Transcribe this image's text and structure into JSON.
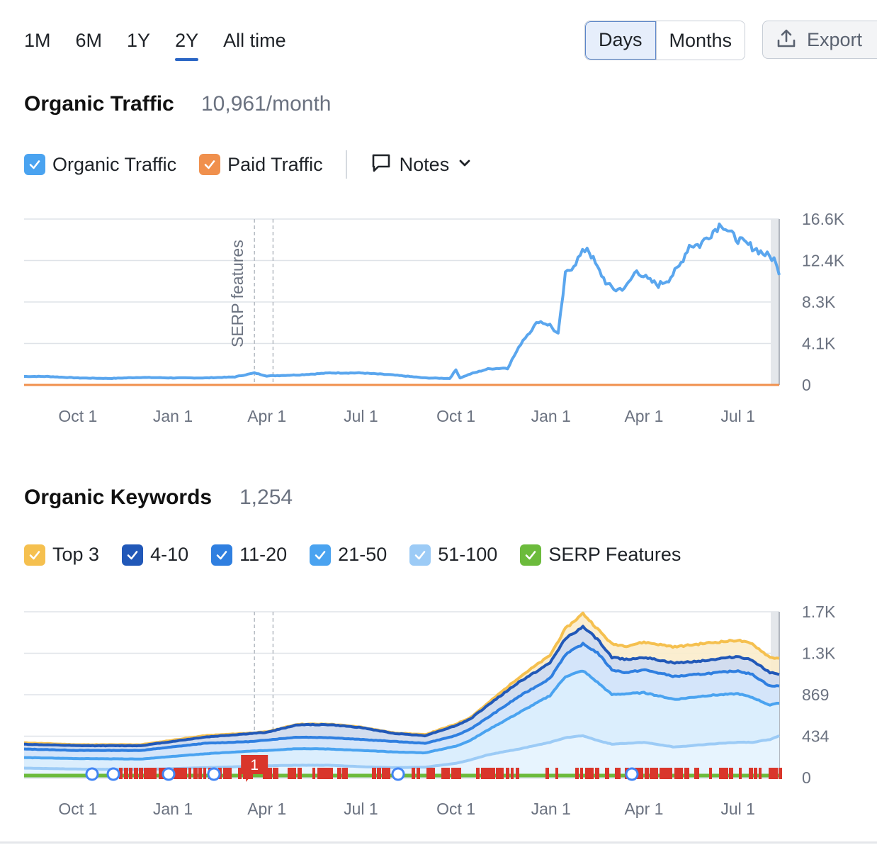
{
  "toolbar": {
    "ranges": [
      "1M",
      "6M",
      "1Y",
      "2Y",
      "All time"
    ],
    "active_range": "2Y",
    "units": [
      "Days",
      "Months"
    ],
    "active_unit": "Days",
    "export_label": "Export"
  },
  "traffic": {
    "title": "Organic Traffic",
    "value": "10,961/month",
    "legend": [
      {
        "label": "Organic Traffic",
        "color": "#4aa3f0",
        "checked": true
      },
      {
        "label": "Paid Traffic",
        "color": "#f0904d",
        "checked": true
      }
    ],
    "notes_label": "Notes"
  },
  "keywords": {
    "title": "Organic Keywords",
    "value": "1,254",
    "legend": [
      {
        "label": "Top 3",
        "color": "#f5c04f",
        "checked": true
      },
      {
        "label": "4-10",
        "color": "#2158b8",
        "checked": true
      },
      {
        "label": "11-20",
        "color": "#2f7fe0",
        "checked": true
      },
      {
        "label": "21-50",
        "color": "#4aa3f0",
        "checked": true
      },
      {
        "label": "51-100",
        "color": "#9ccbf6",
        "checked": true
      },
      {
        "label": "SERP Features",
        "color": "#6cbb3c",
        "checked": true
      }
    ]
  },
  "chart_data": [
    {
      "type": "line",
      "title": "Organic Traffic",
      "x_tick_labels": [
        "Oct 1",
        "Jan 1",
        "Apr 1",
        "Jul 1",
        "Oct 1",
        "Jan 1",
        "Apr 1",
        "Jul 1"
      ],
      "y_tick_labels": [
        "16.6K",
        "12.4K",
        "8.3K",
        "4.1K",
        "0"
      ],
      "ylim": [
        0,
        16600
      ],
      "annotation": "SERP features",
      "series": [
        {
          "name": "Organic Traffic",
          "color": "#5aa6ee",
          "x": [
            "2023-08-10",
            "2023-09-01",
            "2023-10-01",
            "2023-11-01",
            "2023-12-01",
            "2024-01-01",
            "2024-02-01",
            "2024-03-01",
            "2024-03-20",
            "2024-04-01",
            "2024-05-01",
            "2024-06-01",
            "2024-07-01",
            "2024-08-01",
            "2024-09-01",
            "2024-09-25",
            "2024-10-01",
            "2024-10-05",
            "2024-10-15",
            "2024-11-01",
            "2024-11-20",
            "2024-12-05",
            "2024-12-20",
            "2024-12-31",
            "2025-01-08",
            "2025-01-15",
            "2025-01-25",
            "2025-02-05",
            "2025-02-15",
            "2025-02-25",
            "2025-03-05",
            "2025-03-15",
            "2025-03-25",
            "2025-04-05",
            "2025-04-15",
            "2025-04-25",
            "2025-05-05",
            "2025-05-15",
            "2025-05-25",
            "2025-06-05",
            "2025-06-15",
            "2025-06-25",
            "2025-07-05",
            "2025-07-15",
            "2025-07-25",
            "2025-08-05",
            "2025-08-10"
          ],
          "y": [
            850,
            850,
            700,
            650,
            750,
            700,
            700,
            800,
            1200,
            900,
            1000,
            1200,
            1200,
            1000,
            700,
            650,
            1500,
            700,
            1100,
            1600,
            1700,
            4500,
            6400,
            6000,
            5000,
            11000,
            12300,
            13800,
            11700,
            10000,
            9500,
            9800,
            11500,
            10500,
            10000,
            10600,
            11800,
            14000,
            14000,
            15200,
            16200,
            15000,
            14300,
            13800,
            13200,
            12600,
            11000
          ]
        },
        {
          "name": "Paid Traffic",
          "color": "#f0904d",
          "x": [
            "2023-08-10",
            "2025-08-10"
          ],
          "y": [
            0,
            0
          ]
        }
      ]
    },
    {
      "type": "area",
      "title": "Organic Keywords",
      "x_tick_labels": [
        "Oct 1",
        "Jan 1",
        "Apr 1",
        "Jul 1",
        "Oct 1",
        "Jan 1",
        "Apr 1",
        "Jul 1"
      ],
      "y_tick_labels": [
        "1.7K",
        "1.3K",
        "869",
        "434",
        "0"
      ],
      "ylim": [
        0,
        1738
      ],
      "x": [
        "2023-08-10",
        "2023-10-01",
        "2023-12-01",
        "2024-02-01",
        "2024-03-20",
        "2024-04-01",
        "2024-05-01",
        "2024-06-01",
        "2024-07-01",
        "2024-08-01",
        "2024-09-01",
        "2024-10-01",
        "2024-10-15",
        "2024-11-01",
        "2024-12-01",
        "2024-12-31",
        "2025-01-15",
        "2025-02-01",
        "2025-02-15",
        "2025-03-01",
        "2025-03-15",
        "2025-04-01",
        "2025-05-01",
        "2025-06-01",
        "2025-07-01",
        "2025-07-15",
        "2025-08-01",
        "2025-08-10"
      ],
      "series": [
        {
          "name": "Top 3",
          "color": "#f5c04f",
          "values": [
            365,
            345,
            345,
            440,
            470,
            480,
            560,
            560,
            530,
            470,
            450,
            560,
            630,
            780,
            1050,
            1280,
            1560,
            1720,
            1560,
            1400,
            1380,
            1420,
            1370,
            1410,
            1440,
            1400,
            1260,
            1250
          ]
        },
        {
          "name": "4-10",
          "color": "#2158b8",
          "values": [
            350,
            335,
            335,
            425,
            465,
            475,
            555,
            555,
            525,
            465,
            440,
            545,
            615,
            760,
            1000,
            1200,
            1460,
            1580,
            1450,
            1260,
            1240,
            1260,
            1200,
            1230,
            1270,
            1230,
            1100,
            1080
          ]
        },
        {
          "name": "11-20",
          "color": "#2f7fe0",
          "values": [
            300,
            285,
            285,
            360,
            380,
            395,
            425,
            420,
            400,
            380,
            360,
            440,
            510,
            630,
            850,
            1040,
            1290,
            1400,
            1310,
            1130,
            1100,
            1130,
            1060,
            1090,
            1120,
            1080,
            960,
            960
          ]
        },
        {
          "name": "21-50",
          "color": "#4aa3f0",
          "values": [
            210,
            200,
            195,
            250,
            280,
            285,
            305,
            300,
            285,
            270,
            260,
            330,
            390,
            500,
            680,
            860,
            1060,
            1120,
            1000,
            870,
            880,
            890,
            820,
            860,
            880,
            840,
            760,
            780
          ]
        },
        {
          "name": "51-100",
          "color": "#9ccbf6",
          "values": [
            100,
            90,
            85,
            105,
            120,
            125,
            130,
            130,
            115,
            105,
            110,
            150,
            185,
            240,
            300,
            370,
            420,
            440,
            390,
            350,
            360,
            370,
            320,
            350,
            370,
            370,
            400,
            440
          ]
        }
      ],
      "serp_features_marker": "1"
    }
  ]
}
